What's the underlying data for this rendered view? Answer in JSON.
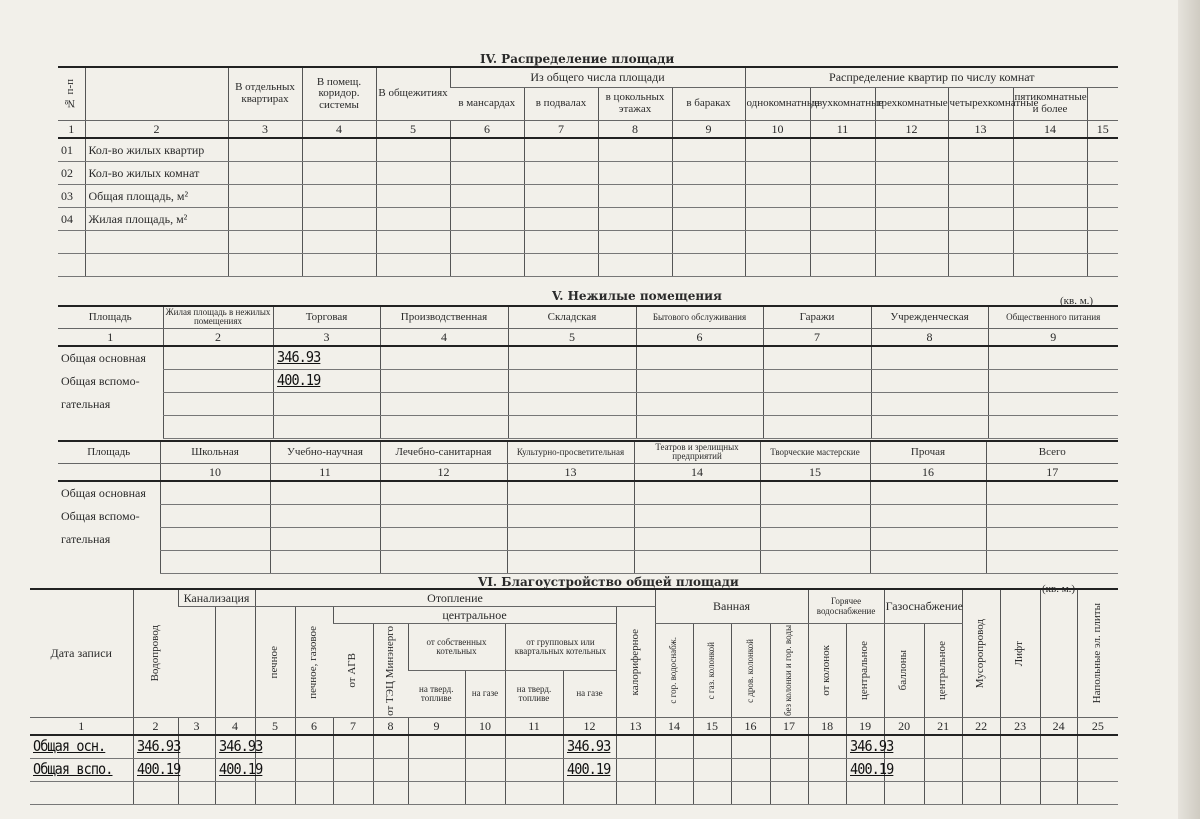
{
  "section_iv": {
    "title": "IV. Распределение площади",
    "headers": {
      "num": "№ п-п",
      "separate": "В отдельных квартирах",
      "corridor": "В помещ. коридор. системы",
      "dorm": "В общежитиях",
      "of_total": "Из общего числа площади",
      "attic": "в мансардах",
      "basement": "в подвалах",
      "ground": "в цокольных этажах",
      "barracks": "в бараках",
      "by_rooms": "Распределение квартир по числу комнат",
      "r1": "однокомнатные",
      "r2": "двухкомнатные",
      "r3": "трехкомнатные",
      "r4": "четырехкомнатные",
      "r5": "пятикомнатные и более"
    },
    "col_numbers": [
      "1",
      "2",
      "3",
      "4",
      "5",
      "6",
      "7",
      "8",
      "9",
      "10",
      "11",
      "12",
      "13",
      "14",
      "15"
    ],
    "rows": [
      [
        "01",
        "Кол-во жилых квартир"
      ],
      [
        "02",
        "Кол-во жилых комнат"
      ],
      [
        "03",
        "Общая площадь, м²"
      ],
      [
        "04",
        "Жилая площадь, м²"
      ],
      [
        "",
        ""
      ],
      [
        "",
        ""
      ]
    ]
  },
  "section_v": {
    "title": "V. Нежилые помещения",
    "unit": "(кв. м.)",
    "table1": {
      "headers": [
        "Площадь",
        "Жилая площадь в нежилых помещениях",
        "Торговая",
        "Производственная",
        "Складская",
        "Бытового обслуживания",
        "Гаражи",
        "Учрежденческая",
        "Общественного питания"
      ],
      "col_numbers": [
        "1",
        "2",
        "3",
        "4",
        "5",
        "6",
        "7",
        "8",
        "9"
      ],
      "rows": [
        [
          "Общая основная",
          "",
          "346.93"
        ],
        [
          "Общая вспомо-",
          "",
          "400.19"
        ],
        [
          "гательная"
        ],
        [
          ""
        ]
      ]
    },
    "table2": {
      "headers": [
        "Площадь",
        "Школьная",
        "Учебно-научная",
        "Лечебно-санитарная",
        "Культурно-просветительная",
        "Театров и зрелищных предприятий",
        "Творческие мастерские",
        "Прочая",
        "Всего"
      ],
      "col_numbers": [
        "",
        "10",
        "11",
        "12",
        "13",
        "14",
        "15",
        "16",
        "17"
      ],
      "rows": [
        [
          "Общая основная"
        ],
        [
          "Общая вспомо-"
        ],
        [
          "гательная"
        ],
        [
          ""
        ]
      ]
    }
  },
  "section_vi": {
    "title": "VI. Благоустройство общей площади",
    "unit": "(кв. м.)",
    "headers": {
      "date": "Дата записи",
      "water": "Водопровод",
      "sewer": "Канализация",
      "heating": "Отопление",
      "stove": "печное",
      "stove_gas": "печное, газовое",
      "central": "центральное",
      "agv": "от АГВ",
      "tec": "от ТЭЦ Минэнерго",
      "own": "от собственных котельных",
      "group": "от групповых или квартальных котельных",
      "solid1": "на тверд. топливе",
      "gas1": "на газе",
      "solid2": "на тверд. топливе",
      "gas2": "на газе",
      "calor": "калориферное",
      "bath": "Ванная",
      "b1": "с гор. водоснабж.",
      "b2": "с газ. колонкой",
      "b3": "с дров. колонкой",
      "b4": "без колонки и гор. воды",
      "hot": "Горячее водоснабжение",
      "h1": "от колонок",
      "h2": "центральное",
      "gassup": "Газоснабжение",
      "g1": "баллоны",
      "g2": "центральное",
      "garbage": "Мусоропровод",
      "lift": "Лифт",
      "stoves": "Напольные эл. плиты"
    },
    "col_numbers": [
      "1",
      "2",
      "3",
      "4",
      "5",
      "6",
      "7",
      "8",
      "9",
      "10",
      "11",
      "12",
      "13",
      "14",
      "15",
      "16",
      "17",
      "18",
      "19",
      "20",
      "21",
      "22",
      "23",
      "24",
      "25"
    ],
    "rows": [
      [
        "Общая осн.",
        "346.93",
        "",
        "346.93",
        "",
        "",
        "",
        "",
        "",
        "",
        "",
        "346.93",
        "",
        "",
        "",
        "",
        "",
        "",
        "346.93"
      ],
      [
        "Общая вспо.",
        "400.19",
        "",
        "400.19",
        "",
        "",
        "",
        "",
        "",
        "",
        "",
        "400.19",
        "",
        "",
        "",
        "",
        "",
        "",
        "400.19"
      ],
      [
        ""
      ]
    ]
  }
}
